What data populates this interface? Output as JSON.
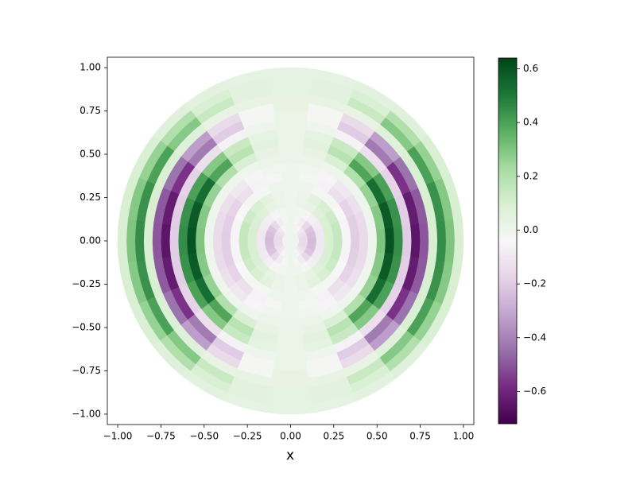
{
  "chart_data": {
    "type": "heatmap",
    "xlabel": "x",
    "xlim": [
      -1.06,
      1.06
    ],
    "ylim": [
      -1.06,
      1.06
    ],
    "xticks": [
      {
        "value": -1,
        "label": "−1.00"
      },
      {
        "value": -0.75,
        "label": "−0.75"
      },
      {
        "value": -0.5,
        "label": "−0.50"
      },
      {
        "value": -0.25,
        "label": "−0.25"
      },
      {
        "value": 0,
        "label": "0.00"
      },
      {
        "value": 0.25,
        "label": "0.25"
      },
      {
        "value": 0.5,
        "label": "0.50"
      },
      {
        "value": 0.75,
        "label": "0.75"
      },
      {
        "value": 1,
        "label": "1.00"
      }
    ],
    "yticks": [
      {
        "value": -1,
        "label": "−1.00"
      },
      {
        "value": -0.75,
        "label": "−0.75"
      },
      {
        "value": -0.5,
        "label": "−0.50"
      },
      {
        "value": -0.25,
        "label": "−0.25"
      },
      {
        "value": 0,
        "label": "0.00"
      },
      {
        "value": 0.25,
        "label": "0.25"
      },
      {
        "value": 0.5,
        "label": "0.50"
      },
      {
        "value": 0.75,
        "label": "0.75"
      },
      {
        "value": 1,
        "label": "1.00"
      }
    ],
    "colormap": [
      "#40004b",
      "#762a83",
      "#9970ab",
      "#c2a5cf",
      "#e7d4e8",
      "#f7f7f7",
      "#d9f0d3",
      "#a6dba0",
      "#5aae61",
      "#1b7837",
      "#00441b"
    ],
    "clim": [
      -0.72,
      0.64
    ],
    "cticks": [
      {
        "value": -0.6,
        "label": "−0.6"
      },
      {
        "value": -0.4,
        "label": "−0.4"
      },
      {
        "value": -0.2,
        "label": "−0.2"
      },
      {
        "value": 0,
        "label": "0.0"
      },
      {
        "value": 0.2,
        "label": "0.2"
      },
      {
        "value": 0.4,
        "label": "0.4"
      },
      {
        "value": 0.6,
        "label": "0.6"
      }
    ],
    "r": [
      0.025,
      0.075,
      0.125,
      0.175,
      0.225,
      0.275,
      0.325,
      0.375,
      0.425,
      0.475,
      0.525,
      0.575,
      0.625,
      0.675,
      0.725,
      0.775,
      0.825,
      0.875,
      0.925,
      0.975
    ],
    "theta": [
      0,
      15,
      30,
      45,
      60,
      75,
      90,
      105,
      120,
      135,
      150,
      165,
      180,
      195,
      210,
      225,
      240,
      255,
      270,
      285,
      300,
      315,
      330,
      345
    ],
    "z": [
      [
        0,
        -0.15,
        -0.25,
        -0.1,
        0.1,
        0.15,
        -0.05,
        -0.2,
        -0.15,
        0,
        0.3,
        0.6,
        0.45,
        -0.2,
        -0.65,
        -0.5,
        0.1,
        0.45,
        0.3,
        0.1
      ],
      [
        0,
        -0.15,
        -0.24,
        -0.1,
        0.1,
        0.15,
        -0.05,
        -0.19,
        -0.15,
        0,
        0.29,
        0.58,
        0.44,
        -0.19,
        -0.63,
        -0.49,
        0.1,
        0.44,
        0.29,
        0.1
      ],
      [
        0,
        -0.13,
        -0.22,
        -0.09,
        0.09,
        0.13,
        -0.04,
        -0.18,
        -0.13,
        0,
        0.26,
        0.53,
        0.4,
        -0.18,
        -0.57,
        -0.44,
        0.09,
        0.4,
        0.26,
        0.09
      ],
      [
        0,
        -0.1,
        -0.16,
        -0.07,
        0.07,
        0.1,
        -0.03,
        -0.13,
        -0.1,
        0,
        0.2,
        0.39,
        0.29,
        -0.13,
        -0.42,
        -0.33,
        0.07,
        0.29,
        0.2,
        0.07
      ],
      [
        0,
        -0.05,
        -0.08,
        -0.03,
        0.03,
        0.05,
        -0.02,
        -0.06,
        -0.05,
        0,
        0.09,
        0.18,
        0.14,
        -0.06,
        -0.2,
        -0.15,
        0.03,
        0.14,
        0.09,
        0.05
      ],
      [
        0,
        -0.01,
        -0.02,
        -0.01,
        0.01,
        0.01,
        0,
        -0.02,
        -0.01,
        0.01,
        0.03,
        0.05,
        0.04,
        0,
        -0.03,
        -0.02,
        0.03,
        0.05,
        0.05,
        0.04
      ],
      [
        0,
        0,
        0,
        0,
        0,
        0,
        0,
        0,
        0,
        0.01,
        0.01,
        0.02,
        0.02,
        0.02,
        0.02,
        0.03,
        0.03,
        0.04,
        0.04,
        0.04
      ],
      [
        0,
        -0.01,
        -0.02,
        -0.01,
        0.01,
        0.01,
        0,
        -0.02,
        -0.01,
        0.01,
        0.03,
        0.05,
        0.04,
        0,
        -0.03,
        -0.02,
        0.03,
        0.05,
        0.05,
        0.04
      ],
      [
        0,
        -0.05,
        -0.08,
        -0.03,
        0.03,
        0.05,
        -0.02,
        -0.06,
        -0.05,
        0,
        0.09,
        0.18,
        0.14,
        -0.06,
        -0.2,
        -0.15,
        0.03,
        0.14,
        0.09,
        0.05
      ],
      [
        0,
        -0.1,
        -0.16,
        -0.07,
        0.07,
        0.1,
        -0.03,
        -0.13,
        -0.1,
        0,
        0.2,
        0.39,
        0.29,
        -0.13,
        -0.42,
        -0.33,
        0.07,
        0.29,
        0.2,
        0.07
      ],
      [
        0,
        -0.13,
        -0.22,
        -0.09,
        0.09,
        0.13,
        -0.04,
        -0.18,
        -0.13,
        0,
        0.26,
        0.53,
        0.4,
        -0.18,
        -0.57,
        -0.44,
        0.09,
        0.4,
        0.26,
        0.09
      ],
      [
        0,
        -0.15,
        -0.24,
        -0.1,
        0.1,
        0.15,
        -0.05,
        -0.19,
        -0.15,
        0,
        0.29,
        0.58,
        0.44,
        -0.19,
        -0.63,
        -0.49,
        0.1,
        0.44,
        0.29,
        0.1
      ],
      [
        0,
        -0.15,
        -0.25,
        -0.1,
        0.1,
        0.15,
        -0.05,
        -0.2,
        -0.15,
        0,
        0.3,
        0.6,
        0.45,
        -0.2,
        -0.65,
        -0.5,
        0.1,
        0.45,
        0.3,
        0.1
      ],
      [
        0,
        -0.15,
        -0.24,
        -0.1,
        0.1,
        0.15,
        -0.05,
        -0.19,
        -0.15,
        0,
        0.29,
        0.58,
        0.44,
        -0.19,
        -0.63,
        -0.49,
        0.1,
        0.44,
        0.29,
        0.1
      ],
      [
        0,
        -0.13,
        -0.22,
        -0.09,
        0.09,
        0.13,
        -0.04,
        -0.18,
        -0.13,
        0,
        0.26,
        0.53,
        0.4,
        -0.18,
        -0.57,
        -0.44,
        0.09,
        0.4,
        0.26,
        0.09
      ],
      [
        0,
        -0.1,
        -0.16,
        -0.07,
        0.07,
        0.1,
        -0.03,
        -0.13,
        -0.1,
        0,
        0.2,
        0.39,
        0.29,
        -0.13,
        -0.42,
        -0.33,
        0.07,
        0.29,
        0.2,
        0.07
      ],
      [
        0,
        -0.05,
        -0.08,
        -0.03,
        0.03,
        0.05,
        -0.02,
        -0.06,
        -0.05,
        0,
        0.09,
        0.18,
        0.14,
        -0.06,
        -0.2,
        -0.15,
        0.03,
        0.14,
        0.09,
        0.05
      ],
      [
        0,
        -0.01,
        -0.02,
        -0.01,
        0.01,
        0.01,
        0,
        -0.02,
        -0.01,
        0.01,
        0.03,
        0.05,
        0.04,
        0,
        -0.03,
        -0.02,
        0.03,
        0.05,
        0.05,
        0.04
      ],
      [
        0,
        0,
        0,
        0,
        0,
        0,
        0,
        0,
        0,
        0.01,
        0.01,
        0.02,
        0.02,
        0.02,
        0.02,
        0.03,
        0.03,
        0.04,
        0.04,
        0.04
      ],
      [
        0,
        -0.01,
        -0.02,
        -0.01,
        0.01,
        0.01,
        0,
        -0.02,
        -0.01,
        0.01,
        0.03,
        0.05,
        0.04,
        0,
        -0.03,
        -0.02,
        0.03,
        0.05,
        0.05,
        0.04
      ],
      [
        0,
        -0.05,
        -0.08,
        -0.03,
        0.03,
        0.05,
        -0.02,
        -0.06,
        -0.05,
        0,
        0.09,
        0.18,
        0.14,
        -0.06,
        -0.2,
        -0.15,
        0.03,
        0.14,
        0.09,
        0.05
      ],
      [
        0,
        -0.1,
        -0.16,
        -0.07,
        0.07,
        0.1,
        -0.03,
        -0.13,
        -0.1,
        0,
        0.2,
        0.39,
        0.29,
        -0.13,
        -0.42,
        -0.33,
        0.07,
        0.29,
        0.2,
        0.07
      ],
      [
        0,
        -0.13,
        -0.22,
        -0.09,
        0.09,
        0.13,
        -0.04,
        -0.18,
        -0.13,
        0,
        0.26,
        0.53,
        0.4,
        -0.18,
        -0.57,
        -0.44,
        0.09,
        0.4,
        0.26,
        0.09
      ],
      [
        0,
        -0.15,
        -0.24,
        -0.1,
        0.1,
        0.15,
        -0.05,
        -0.19,
        -0.15,
        0,
        0.29,
        0.58,
        0.44,
        -0.19,
        -0.63,
        -0.49,
        0.1,
        0.44,
        0.29,
        0.1
      ]
    ]
  }
}
